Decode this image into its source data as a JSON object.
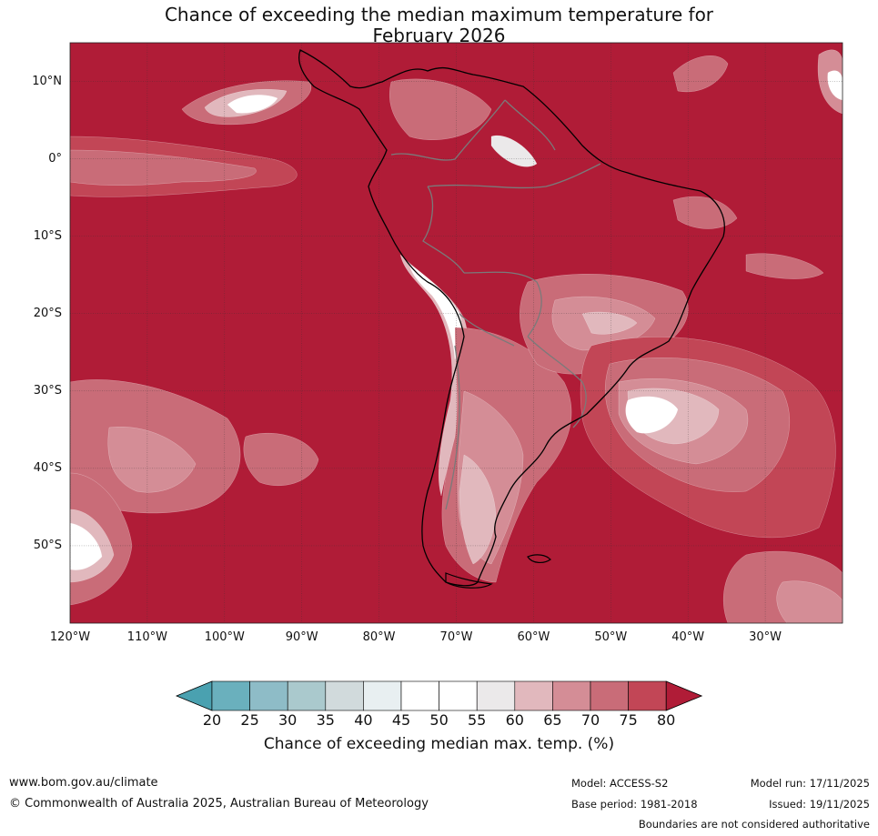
{
  "title_line1": "Chance of exceeding the median maximum temperature for",
  "title_line2": "February 2026",
  "latitude_labels": [
    "10°N",
    "0°",
    "10°S",
    "20°S",
    "30°S",
    "40°S",
    "50°S"
  ],
  "longitude_labels": [
    "120°W",
    "110°W",
    "100°W",
    "90°W",
    "80°W",
    "70°W",
    "60°W",
    "50°W",
    "40°W",
    "30°W"
  ],
  "colorbar": {
    "ticks": [
      "20",
      "25",
      "30",
      "35",
      "40",
      "45",
      "50",
      "55",
      "60",
      "65",
      "70",
      "75",
      "80"
    ],
    "colors": [
      "#4aa1b0",
      "#6ab0bd",
      "#8ebcc7",
      "#aac9cd",
      "#d1dadc",
      "#e8eff1",
      "#ffffff",
      "#ffffff",
      "#ebe9ea",
      "#e1b8bd",
      "#d48d96",
      "#c96c78",
      "#c24656",
      "#b01c37"
    ],
    "label": "Chance of exceeding median max. temp. (%)"
  },
  "map_colors": {
    "base": "#b01c37",
    "c75": "#c24656",
    "c70": "#c96c78",
    "c65": "#d48d96",
    "c60": "#e1b8bd",
    "c55": "#ebe9ea",
    "white": "#ffffff",
    "coast": "#000000",
    "border": "#7a7a7a"
  },
  "footer": {
    "website": "www.bom.gov.au/climate",
    "copyright": "© Commonwealth of Australia 2025, Australian Bureau of Meteorology",
    "model": "Model: ACCESS-S2",
    "model_run": "Model run: 17/11/2025",
    "base_period": "Base period: 1981-2018",
    "issued": "Issued: 19/11/2025",
    "disclaimer": "Boundaries are not considered authoritative"
  }
}
